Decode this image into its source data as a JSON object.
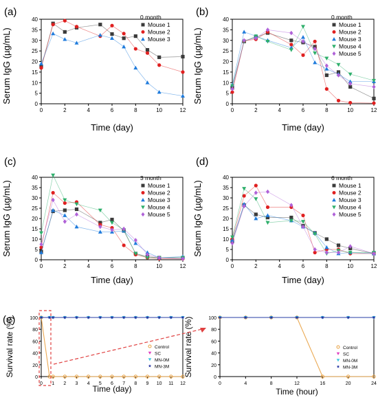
{
  "chart_data": [
    {
      "type": "line",
      "panel_label": "(a)",
      "xlabel": "Time (day)",
      "ylabel": "Serum IgG (µg/mL)",
      "xlim": [
        0,
        12
      ],
      "ylim": [
        0,
        40
      ],
      "xticks": [
        "0",
        "2",
        "4",
        "6",
        "8",
        "10",
        "12"
      ],
      "yticks": [
        "0",
        "5",
        "10",
        "15",
        "20",
        "25",
        "30",
        "35",
        "40"
      ],
      "legend_title": "0 month",
      "legend_position": "top-right",
      "grid": false,
      "x": [
        0,
        1,
        2,
        3,
        5,
        6,
        7,
        8,
        9,
        10,
        12
      ],
      "series": [
        {
          "name": "Mouse 1",
          "color": "#3b3b3b",
          "marker": "square",
          "values": [
            17.5,
            38,
            34,
            36,
            37.5,
            33,
            31,
            32,
            25.5,
            22,
            22.3
          ]
        },
        {
          "name": "Mouse 2",
          "color": "#e02020",
          "marker": "circle",
          "values": [
            17,
            37.5,
            39.3,
            36.5,
            32,
            37,
            33.2,
            26,
            24,
            18.3,
            15
          ]
        },
        {
          "name": "Mouse 3",
          "color": "#1f7bdc",
          "marker": "triangle-up",
          "values": [
            19,
            33.2,
            30.5,
            28.8,
            32.5,
            31,
            27,
            17,
            10,
            5.5,
            3.7
          ]
        }
      ]
    },
    {
      "type": "line",
      "panel_label": "(b)",
      "xlabel": "Time (day)",
      "ylabel": "Serum IgG (µg/mL)",
      "xlim": [
        0,
        12
      ],
      "ylim": [
        0,
        40
      ],
      "xticks": [
        "0",
        "2",
        "4",
        "6",
        "8",
        "10",
        "12"
      ],
      "yticks": [
        "0",
        "5",
        "10",
        "15",
        "20",
        "25",
        "30",
        "35",
        "40"
      ],
      "legend_title": "0 month",
      "legend_position": "top-right",
      "grid": false,
      "x": [
        0,
        1,
        2,
        3,
        5,
        6,
        7,
        8,
        9,
        10,
        12
      ],
      "series": [
        {
          "name": "Mouse 1",
          "color": "#3b3b3b",
          "marker": "square",
          "values": [
            7.5,
            29.5,
            31.5,
            33.5,
            30,
            29,
            27,
            13.5,
            15,
            8,
            2.5
          ]
        },
        {
          "name": "Mouse 2",
          "color": "#e02020",
          "marker": "circle",
          "values": [
            5.5,
            29.8,
            30.5,
            34,
            28,
            23,
            29.5,
            7,
            1.5,
            0.5,
            0.3
          ]
        },
        {
          "name": "Mouse 3",
          "color": "#1f7bdc",
          "marker": "triangle-up",
          "values": [
            9,
            34,
            32,
            30,
            26.5,
            31.5,
            19.5,
            16.5,
            14,
            10.5,
            10.5
          ]
        },
        {
          "name": "Mouse 4",
          "color": "#2eaf6b",
          "marker": "triangle-down",
          "values": [
            8.5,
            29.5,
            32,
            29.5,
            25.5,
            36.5,
            24,
            21.5,
            18.5,
            14,
            11
          ]
        },
        {
          "name": "Mouse 5",
          "color": "#b062d8",
          "marker": "diamond",
          "values": [
            7,
            30,
            31,
            35,
            33.5,
            29.5,
            26,
            18,
            13.5,
            9.5,
            8
          ]
        }
      ]
    },
    {
      "type": "line",
      "panel_label": "(c)",
      "xlabel": "Time (day)",
      "ylabel": "Serum IgG (µg/mL)",
      "xlim": [
        0,
        12
      ],
      "ylim": [
        0,
        40
      ],
      "xticks": [
        "0",
        "2",
        "4",
        "6",
        "8",
        "10",
        "12"
      ],
      "yticks": [
        "0",
        "5",
        "10",
        "15",
        "20",
        "25",
        "30",
        "35",
        "40"
      ],
      "legend_title": "3 month",
      "legend_position": "top-right",
      "grid": false,
      "x": [
        0,
        1,
        2,
        3,
        5,
        6,
        7,
        8,
        9,
        10,
        12
      ],
      "series": [
        {
          "name": "Mouse 1",
          "color": "#3b3b3b",
          "marker": "square",
          "values": [
            4,
            23.5,
            24,
            24.5,
            18,
            19.5,
            14,
            3,
            1.5,
            1,
            1
          ]
        },
        {
          "name": "Mouse 2",
          "color": "#e02020",
          "marker": "circle",
          "values": [
            6,
            32.5,
            27.5,
            28,
            17,
            15.5,
            7,
            2.5,
            1,
            0.5,
            0.5
          ]
        },
        {
          "name": "Mouse 3",
          "color": "#1f7bdc",
          "marker": "triangle-up",
          "values": [
            3.5,
            24,
            21.5,
            16,
            13.5,
            13.5,
            14,
            8,
            3.5,
            1,
            1.5
          ]
        },
        {
          "name": "Mouse 4",
          "color": "#2eaf6b",
          "marker": "triangle-down",
          "values": [
            13,
            41,
            29,
            27,
            24,
            18,
            14.5,
            3,
            1,
            1,
            1
          ]
        },
        {
          "name": "Mouse 5",
          "color": "#b062d8",
          "marker": "diamond",
          "values": [
            7.5,
            29,
            18.5,
            22,
            16,
            14.5,
            15,
            9.5,
            2.5,
            1,
            0.5
          ]
        }
      ]
    },
    {
      "type": "line",
      "panel_label": "(d)",
      "xlabel": "Time (day)",
      "ylabel": "Serum IgG (µg/mL)",
      "xlim": [
        0,
        12
      ],
      "ylim": [
        0,
        40
      ],
      "xticks": [
        "0",
        "2",
        "4",
        "6",
        "8",
        "10",
        "12"
      ],
      "yticks": [
        "0",
        "5",
        "10",
        "15",
        "20",
        "25",
        "30",
        "35",
        "40"
      ],
      "legend_title": "6 month",
      "legend_position": "top-right",
      "grid": false,
      "x": [
        0,
        1,
        2,
        3,
        5,
        6,
        7,
        8,
        9,
        10,
        12
      ],
      "series": [
        {
          "name": "Mouse 1",
          "color": "#3b3b3b",
          "marker": "square",
          "values": [
            9,
            26.5,
            22,
            20.5,
            20.5,
            16.5,
            13,
            10,
            7,
            5.5,
            3
          ]
        },
        {
          "name": "Mouse 2",
          "color": "#e02020",
          "marker": "circle",
          "values": [
            10,
            31,
            36,
            25.5,
            25.5,
            21.5,
            3.5,
            5,
            5,
            3,
            3
          ]
        },
        {
          "name": "Mouse 3",
          "color": "#1f7bdc",
          "marker": "triangle-up",
          "values": [
            9.5,
            27,
            20,
            21.5,
            19,
            16,
            13,
            6,
            3,
            3.5,
            3
          ]
        },
        {
          "name": "Mouse 4",
          "color": "#2eaf6b",
          "marker": "triangle-down",
          "values": [
            11,
            34.5,
            29.5,
            18,
            19,
            18.5,
            12.5,
            3,
            4.5,
            3.5,
            3.5
          ]
        },
        {
          "name": "Mouse 5",
          "color": "#b062d8",
          "marker": "diamond",
          "values": [
            8,
            26,
            32.5,
            33,
            26.5,
            16,
            5,
            3.5,
            3.5,
            6.5,
            3
          ]
        }
      ]
    },
    {
      "type": "line",
      "panel_label": "(e)",
      "xlabel": "Time (day)",
      "ylabel": "Survival rate (%)",
      "xlim": [
        0,
        12
      ],
      "ylim": [
        0,
        100
      ],
      "xticks": [
        "0",
        "1",
        "2",
        "3",
        "4",
        "5",
        "6",
        "7",
        "8",
        "9",
        "10",
        "11",
        "12"
      ],
      "yticks": [
        "0",
        "20",
        "40",
        "60",
        "80",
        "100"
      ],
      "legend_position": "center-right",
      "grid": false,
      "x": [
        0,
        0.7,
        1,
        2,
        3,
        4,
        5,
        6,
        7,
        8,
        9,
        10,
        11,
        12
      ],
      "series": [
        {
          "name": "Control",
          "color": "#e8a040",
          "marker": "circle-open",
          "values": [
            100,
            0,
            0,
            0,
            0,
            0,
            0,
            0,
            0,
            0,
            0,
            0,
            0,
            0
          ]
        },
        {
          "name": "SC",
          "color": "#e040c0",
          "marker": "triangle-down",
          "values": [
            100,
            100,
            100,
            100,
            100,
            100,
            100,
            100,
            100,
            100,
            100,
            100,
            100,
            100
          ]
        },
        {
          "name": "MN-0M",
          "color": "#40c8e0",
          "marker": "triangle-down",
          "values": [
            100,
            100,
            100,
            100,
            100,
            100,
            100,
            100,
            100,
            100,
            100,
            100,
            100,
            100
          ]
        },
        {
          "name": "MN-3M",
          "color": "#2030a0",
          "marker": "star",
          "values": [
            100,
            100,
            100,
            100,
            100,
            100,
            100,
            100,
            100,
            100,
            100,
            100,
            100,
            100
          ]
        }
      ]
    },
    {
      "type": "line",
      "panel_label": "",
      "xlabel": "Time (hour)",
      "ylabel": "Survival rate (%)",
      "xlim": [
        0,
        24
      ],
      "ylim": [
        0,
        100
      ],
      "xticks": [
        "0",
        "4",
        "8",
        "12",
        "16",
        "20",
        "24"
      ],
      "yticks": [
        "0",
        "20",
        "40",
        "60",
        "80",
        "100"
      ],
      "legend_position": "bottom-right",
      "grid": false,
      "x": [
        0,
        4,
        8,
        12,
        16,
        20,
        24
      ],
      "series": [
        {
          "name": "Control",
          "color": "#e8a040",
          "marker": "circle-open",
          "values": [
            100,
            100,
            100,
            100,
            0,
            0,
            0
          ]
        },
        {
          "name": "SC",
          "color": "#e040c0",
          "marker": "triangle-down",
          "values": [
            100,
            100,
            100,
            100,
            100,
            100,
            100
          ]
        },
        {
          "name": "MN-0M",
          "color": "#40c8e0",
          "marker": "triangle-down",
          "values": [
            100,
            100,
            100,
            100,
            100,
            100,
            100
          ]
        },
        {
          "name": "MN-3M",
          "color": "#2030a0",
          "marker": "star",
          "values": [
            100,
            100,
            100,
            100,
            100,
            100,
            100
          ]
        }
      ]
    }
  ]
}
